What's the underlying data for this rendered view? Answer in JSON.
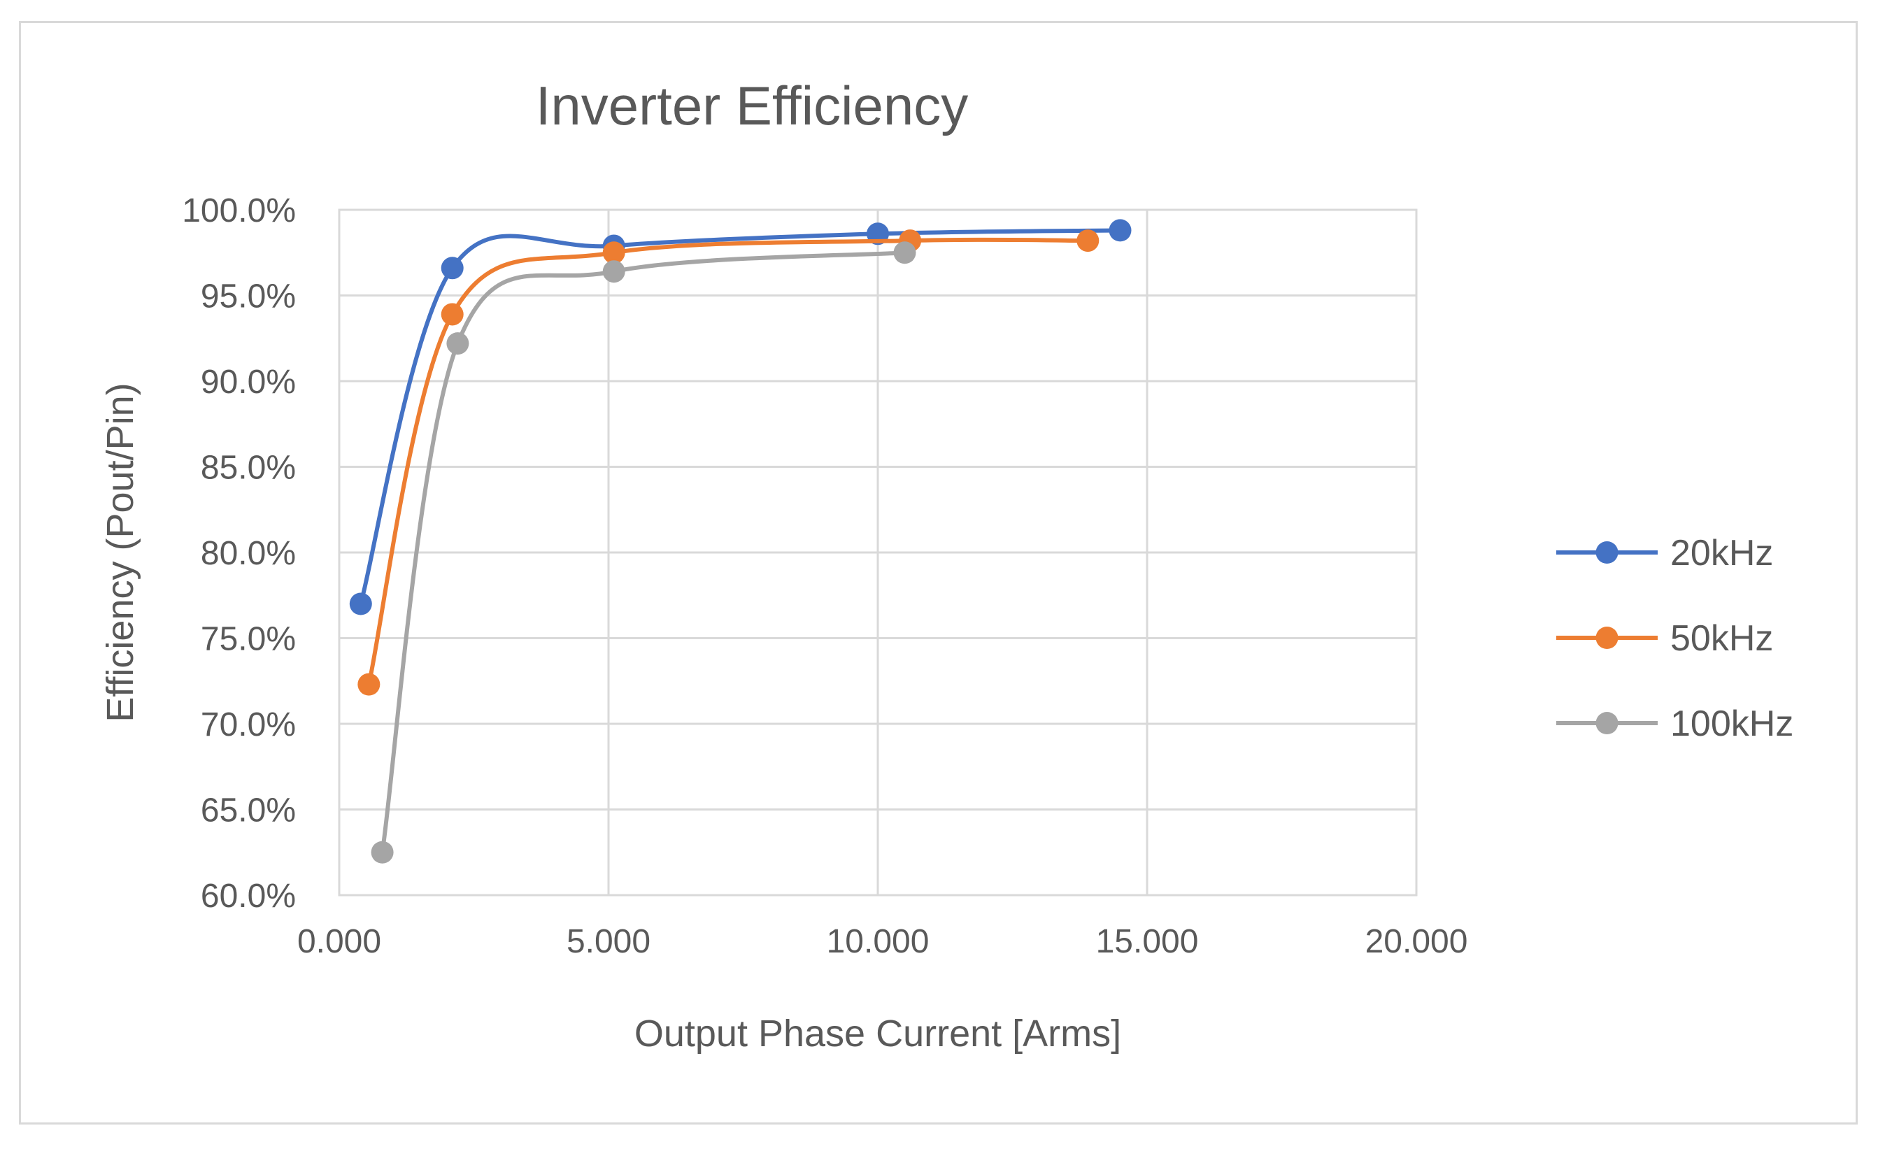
{
  "chart_data": {
    "type": "line",
    "title": "Inverter Efficiency",
    "xlabel": "Output Phase Current [Arms]",
    "ylabel": "Efficiency (Pout/Pin)",
    "xlim": [
      0,
      20
    ],
    "ylim": [
      60,
      100
    ],
    "x_ticks": [
      "0.000",
      "5.000",
      "10.000",
      "15.000",
      "20.000"
    ],
    "y_ticks": [
      "60.0%",
      "65.0%",
      "70.0%",
      "75.0%",
      "80.0%",
      "85.0%",
      "90.0%",
      "95.0%",
      "100.0%"
    ],
    "grid": true,
    "legend_position": "right",
    "smooth": true,
    "series": [
      {
        "name": "20kHz",
        "color": "#4472c4",
        "x": [
          0.4,
          2.1,
          5.1,
          10.0,
          14.5
        ],
        "y": [
          77.0,
          96.6,
          97.9,
          98.6,
          98.8
        ]
      },
      {
        "name": "50kHz",
        "color": "#ed7d31",
        "x": [
          0.55,
          2.1,
          5.1,
          10.6,
          13.9
        ],
        "y": [
          72.3,
          93.9,
          97.5,
          98.2,
          98.2
        ]
      },
      {
        "name": "100kHz",
        "color": "#a5a5a5",
        "x": [
          0.8,
          2.2,
          5.1,
          10.5
        ],
        "y": [
          62.5,
          92.2,
          96.4,
          97.5
        ]
      }
    ]
  }
}
